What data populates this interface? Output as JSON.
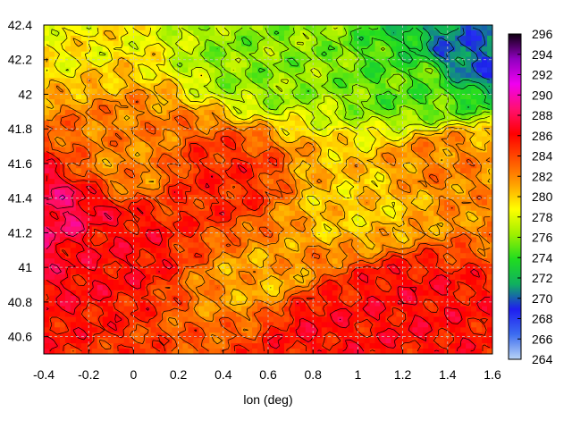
{
  "chart_data": {
    "type": "heatmap",
    "title": "",
    "xlabel": "lon (deg)",
    "ylabel": "",
    "xlim": [
      -0.4,
      1.6
    ],
    "ylim": [
      40.5,
      42.4
    ],
    "x_ticks": [
      "-0.4",
      "-0.2",
      "0",
      "0.2",
      "0.4",
      "0.6",
      "0.8",
      "1",
      "1.2",
      "1.4",
      "1.6"
    ],
    "y_ticks": [
      "42.4",
      "42.2",
      "42",
      "41.8",
      "41.6",
      "41.4",
      "41.2",
      "41",
      "40.8",
      "40.6"
    ],
    "colorbar": {
      "range": [
        264,
        296
      ],
      "ticks": [
        "296",
        "294",
        "292",
        "290",
        "288",
        "286",
        "284",
        "282",
        "280",
        "278",
        "276",
        "274",
        "272",
        "270",
        "268",
        "266",
        "264"
      ],
      "palette": [
        "#b8d4f5",
        "#3c6cf0",
        "#1e1ef0",
        "#10b060",
        "#20dc20",
        "#a0f000",
        "#ffff00",
        "#ffa000",
        "#ff5000",
        "#ff0000",
        "#ff1070",
        "#f000f0",
        "#9000c0",
        "#100010"
      ]
    },
    "grid": true,
    "contours": true,
    "fields": [
      {
        "lon": -0.4,
        "lat": 42.4,
        "value": 279
      },
      {
        "lon": 0.6,
        "lat": 42.2,
        "value": 276
      },
      {
        "lon": 1.3,
        "lat": 42.05,
        "value": 275
      },
      {
        "lon": 1.5,
        "lat": 42.2,
        "value": 270
      },
      {
        "lon": 0.0,
        "lat": 41.6,
        "value": 282
      },
      {
        "lon": 0.35,
        "lat": 41.5,
        "value": 285
      },
      {
        "lon": -0.35,
        "lat": 41.3,
        "value": 288
      },
      {
        "lon": -0.1,
        "lat": 41.15,
        "value": 286
      },
      {
        "lon": 1.2,
        "lat": 40.8,
        "value": 286
      },
      {
        "lon": 0.8,
        "lat": 40.7,
        "value": 286
      },
      {
        "lon": 1.0,
        "lat": 41.35,
        "value": 280
      },
      {
        "lon": 0.6,
        "lat": 40.9,
        "value": 281
      },
      {
        "lon": 1.4,
        "lat": 41.6,
        "value": 282
      }
    ]
  }
}
